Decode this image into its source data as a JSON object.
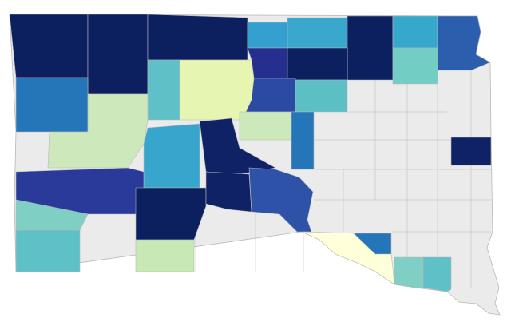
{
  "map": {
    "base_color": "#ebebeb",
    "border_color": "#b8b8b8",
    "regions": [
      {
        "color": "#0c1f5e"
      },
      {
        "color": "#0c1f5e"
      },
      {
        "color": "#0c1f5e"
      },
      {
        "color": "#34a0cf"
      },
      {
        "color": "#39a8cc"
      },
      {
        "color": "#0c1f5e"
      },
      {
        "color": "#36a8cc"
      },
      {
        "color": "#2b5fae"
      },
      {
        "color": "#72cdc4"
      },
      {
        "color": "#25308e"
      },
      {
        "color": "#0c1f5e"
      },
      {
        "color": "#2576b8"
      },
      {
        "color": "#5fc1c8"
      },
      {
        "color": "#e6f5b0"
      },
      {
        "color": "#2a4aa4"
      },
      {
        "color": "#5bbfc4"
      },
      {
        "color": "#cde9bb"
      },
      {
        "color": "#38a6cc"
      },
      {
        "color": "#0f2266"
      },
      {
        "color": "#cde9bb"
      },
      {
        "color": "#2576b8"
      },
      {
        "color": "#2a3a9a"
      },
      {
        "color": "#0c1f5e"
      },
      {
        "color": "#0f2266"
      },
      {
        "color": "#2d52a8"
      },
      {
        "color": "#80cfc4"
      },
      {
        "color": "#5fc1c8"
      },
      {
        "color": "#c7e9b4"
      },
      {
        "color": "#ffffd9"
      },
      {
        "color": "#2576b8"
      },
      {
        "color": "#80cfc4"
      },
      {
        "color": "#5fc1c8"
      },
      {
        "color": "#0f2266"
      }
    ]
  }
}
